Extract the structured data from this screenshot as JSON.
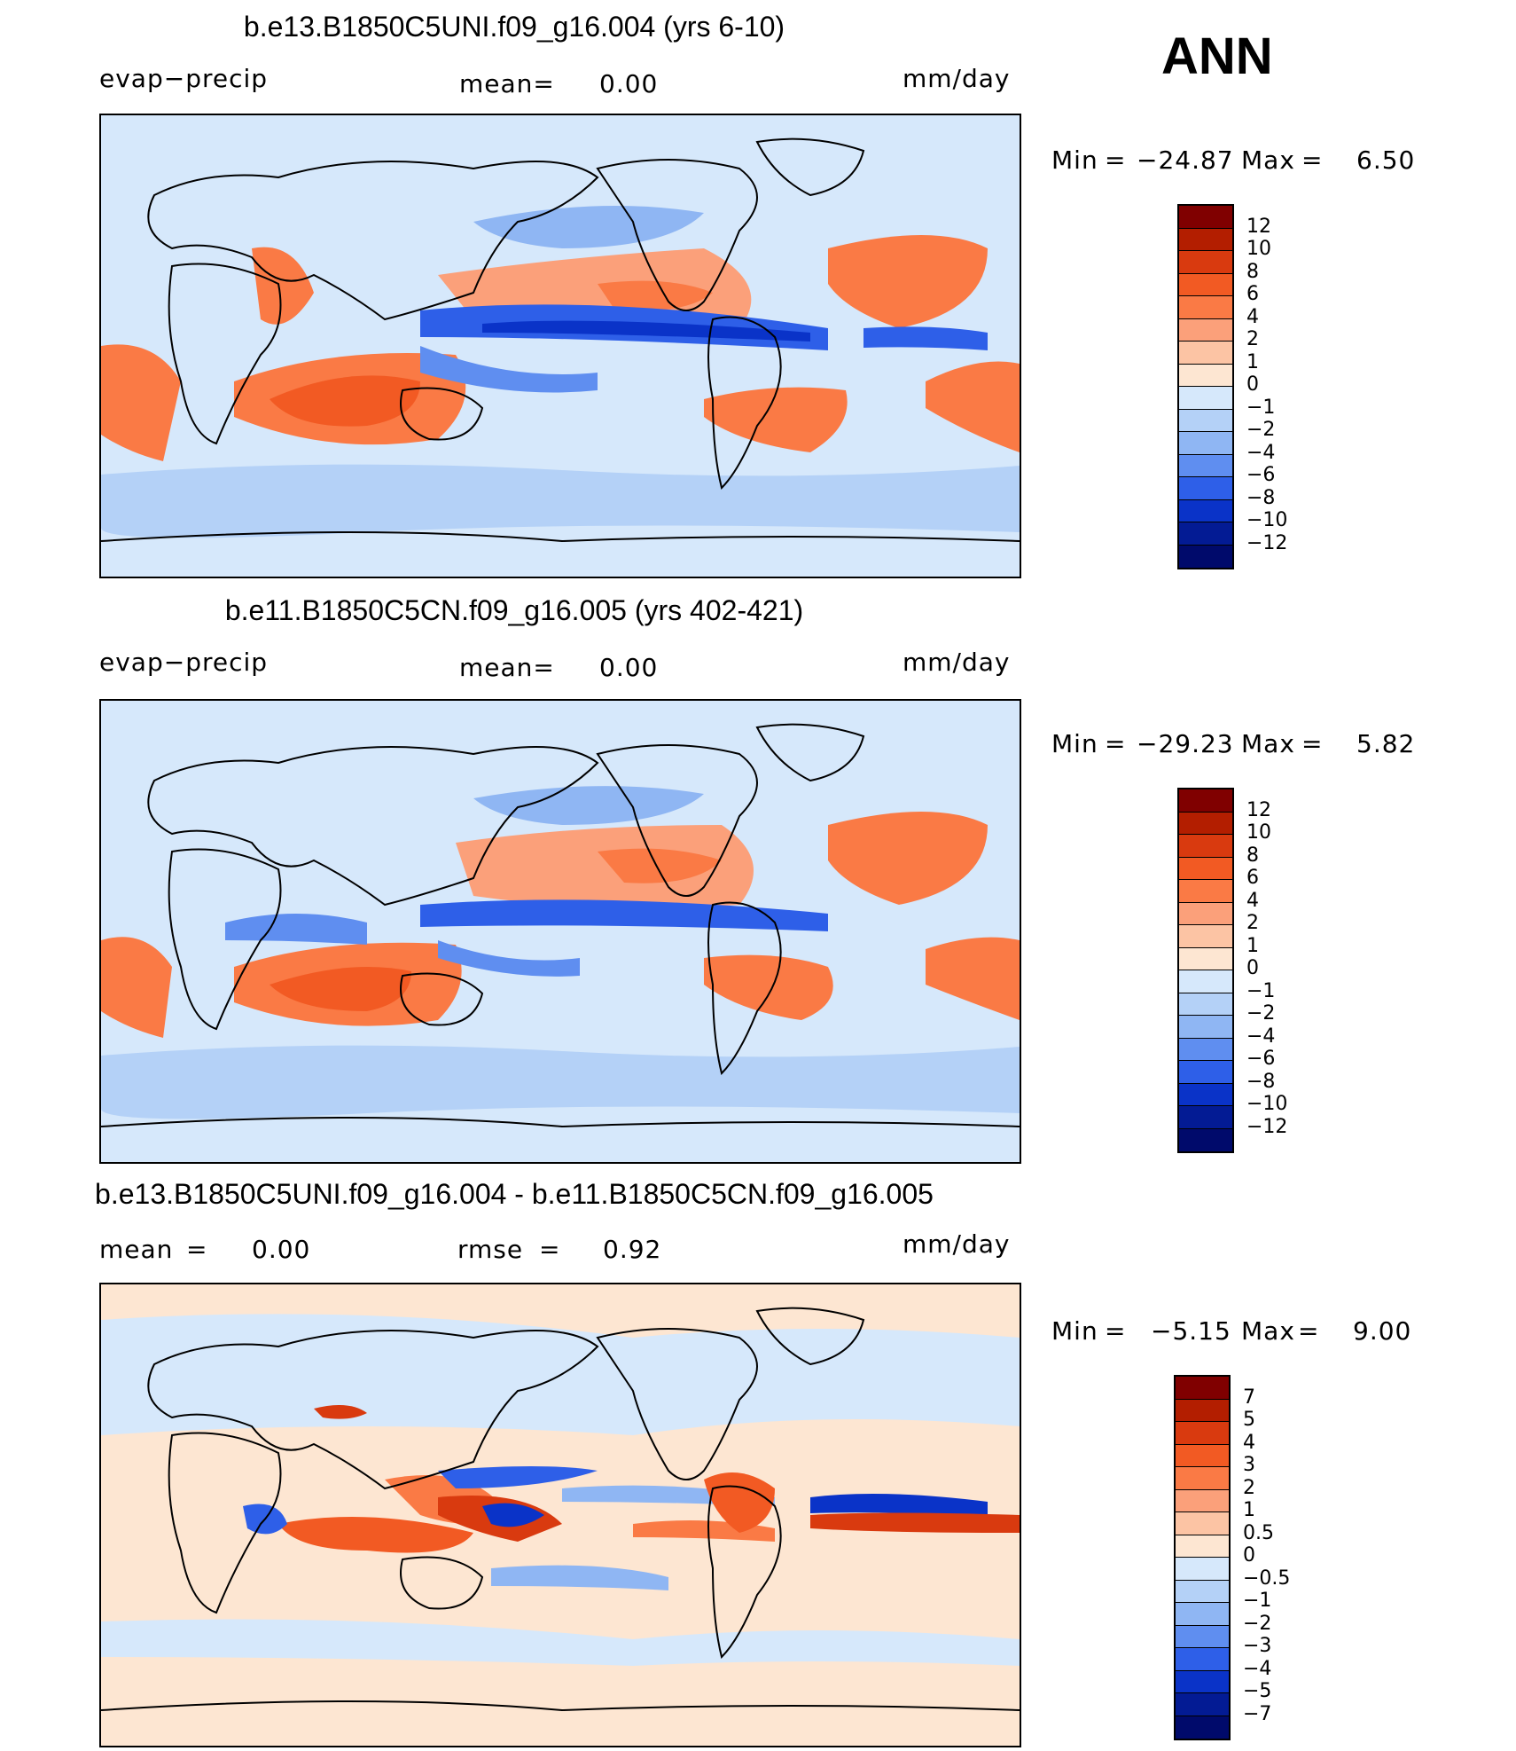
{
  "figure": {
    "season": "ANN"
  },
  "panels": [
    {
      "title": "b.e13.B1850C5UNI.f09_g16.004 (yrs 6-10)",
      "variable": "evap−precip",
      "mean_label": "mean=",
      "mean_value": "0.00",
      "units": "mm/day",
      "min_label": "Min",
      "min_value": "−24.87",
      "max_label": "Max",
      "max_value": "6.50",
      "eq": "=",
      "colorbar": {
        "labels": [
          "12",
          "10",
          "8",
          "6",
          "4",
          "2",
          "1",
          "0",
          "−1",
          "−2",
          "−4",
          "−6",
          "−8",
          "−10",
          "−12"
        ],
        "colors": [
          "#800000",
          "#b31e00",
          "#d93a0f",
          "#f25a23",
          "#fa7a45",
          "#fba07a",
          "#fcc4a4",
          "#fde6d2",
          "#d6e8fb",
          "#b4d1f7",
          "#8fb6f3",
          "#5f8ef0",
          "#2e5fe8",
          "#0a33c8",
          "#031b94",
          "#000a6b"
        ]
      }
    },
    {
      "title": "b.e11.B1850C5CN.f09_g16.005 (yrs 402-421)",
      "variable": "evap−precip",
      "mean_label": "mean=",
      "mean_value": "0.00",
      "units": "mm/day",
      "min_label": "Min",
      "min_value": "−29.23",
      "max_label": "Max",
      "max_value": "5.82",
      "eq": "=",
      "colorbar": {
        "labels": [
          "12",
          "10",
          "8",
          "6",
          "4",
          "2",
          "1",
          "0",
          "−1",
          "−2",
          "−4",
          "−6",
          "−8",
          "−10",
          "−12"
        ],
        "colors": [
          "#800000",
          "#b31e00",
          "#d93a0f",
          "#f25a23",
          "#fa7a45",
          "#fba07a",
          "#fcc4a4",
          "#fde6d2",
          "#d6e8fb",
          "#b4d1f7",
          "#8fb6f3",
          "#5f8ef0",
          "#2e5fe8",
          "#0a33c8",
          "#031b94",
          "#000a6b"
        ]
      }
    },
    {
      "title": "b.e13.B1850C5UNI.f09_g16.004 - b.e11.B1850C5CN.f09_g16.005",
      "mean_label": "mean",
      "mean_value": "0.00",
      "rmse_label": "rmse",
      "rmse_value": "0.92",
      "units": "mm/day",
      "min_label": "Min",
      "min_value": "−5.15",
      "max_label": "Max",
      "max_value": "9.00",
      "eq": "=",
      "colorbar": {
        "labels": [
          "7",
          "5",
          "4",
          "3",
          "2",
          "1",
          "0.5",
          "0",
          "−0.5",
          "−1",
          "−2",
          "−3",
          "−4",
          "−5",
          "−7"
        ],
        "colors": [
          "#800000",
          "#b31e00",
          "#d93a0f",
          "#f25a23",
          "#fa7a45",
          "#fba07a",
          "#fcc4a4",
          "#fde6d2",
          "#d6e8fb",
          "#b4d1f7",
          "#8fb6f3",
          "#5f8ef0",
          "#2e5fe8",
          "#0a33c8",
          "#031b94",
          "#000a6b"
        ]
      }
    }
  ],
  "chart_data": [
    {
      "type": "heatmap",
      "title": "b.e13.B1850C5UNI.f09_g16.004 (yrs 6-10)",
      "variable": "evap−precip",
      "units": "mm/day",
      "mean": 0.0,
      "min": -24.87,
      "max": 6.5,
      "levels": [
        -12,
        -10,
        -8,
        -6,
        -4,
        -2,
        -1,
        0,
        1,
        2,
        4,
        6,
        8,
        10,
        12
      ]
    },
    {
      "type": "heatmap",
      "title": "b.e11.B1850C5CN.f09_g16.005 (yrs 402-421)",
      "variable": "evap−precip",
      "units": "mm/day",
      "mean": 0.0,
      "min": -29.23,
      "max": 5.82,
      "levels": [
        -12,
        -10,
        -8,
        -6,
        -4,
        -2,
        -1,
        0,
        1,
        2,
        4,
        6,
        8,
        10,
        12
      ]
    },
    {
      "type": "heatmap",
      "title": "b.e13.B1850C5UNI.f09_g16.004 - b.e11.B1850C5CN.f09_g16.005",
      "units": "mm/day",
      "mean": 0.0,
      "rmse": 0.92,
      "min": -5.15,
      "max": 9.0,
      "levels": [
        -7,
        -5,
        -4,
        -3,
        -2,
        -1,
        -0.5,
        0,
        0.5,
        1,
        2,
        3,
        4,
        5,
        7
      ]
    }
  ]
}
